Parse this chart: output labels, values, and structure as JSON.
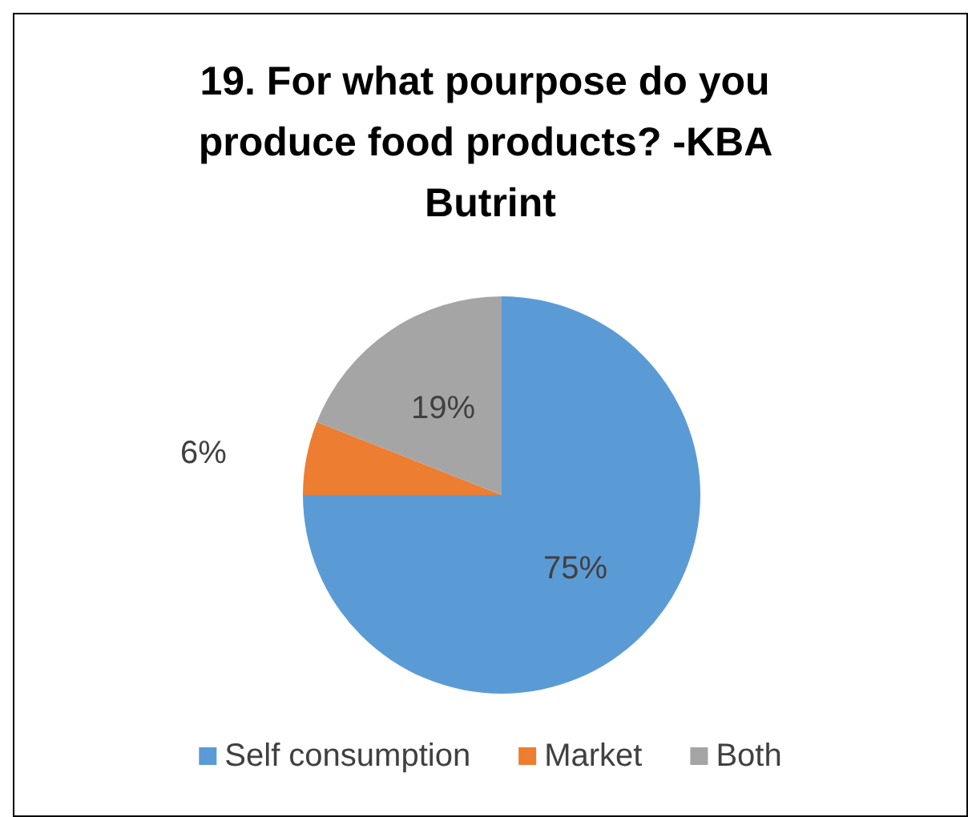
{
  "chart_data": {
    "type": "pie",
    "title": "19. For what pourpose do you produce food products? -KBA Butrint",
    "categories": [
      "Self consumption",
      "Market",
      "Both"
    ],
    "values": [
      75,
      6,
      19
    ],
    "colors": [
      "#5b9bd5",
      "#ed7d31",
      "#a5a5a5"
    ],
    "value_labels": [
      "75%",
      "6%",
      "19%"
    ],
    "legend": "bottom"
  }
}
